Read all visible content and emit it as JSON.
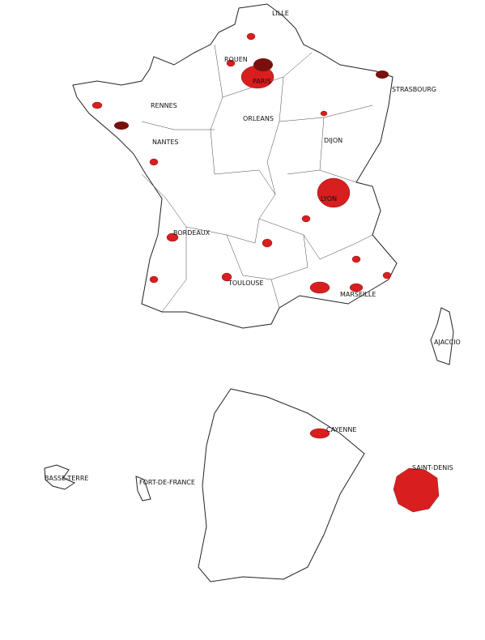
{
  "map": {
    "cities": [
      "LILLE",
      "ROUEN",
      "PARIS",
      "STRASBOURG",
      "RENNES",
      "ORLEANS",
      "NANTES",
      "DIJON",
      "LYON",
      "BORDEAUX",
      "TOULOUSE",
      "MARSEILLE",
      "AJACCIO",
      "CAYENNE",
      "SAINT-DENIS",
      "BASSE-TERRE",
      "FORT-DE-FRANCE"
    ]
  }
}
